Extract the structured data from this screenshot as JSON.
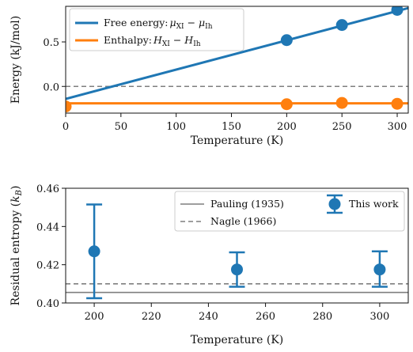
{
  "chart_data": [
    {
      "type": "line",
      "xlabel": "Temperature (K)",
      "ylabel": "Energy (kJ/mol)",
      "xlim": [
        0,
        310
      ],
      "ylim": [
        -0.3,
        0.9
      ],
      "xticks": [
        0,
        50,
        100,
        150,
        200,
        250,
        300
      ],
      "yticks": [
        0.0,
        0.5
      ],
      "ytick_labels": [
        "0.0",
        "0.5"
      ],
      "legend_placement": "top-left",
      "reference_line": {
        "y": 0.0,
        "style": "dashed",
        "color": "#7f7f7f"
      },
      "series": [
        {
          "name": "Free energy: μXI − μIh",
          "legend_prefix": "Free energy: ",
          "legend_math": "μXI − μIh",
          "color": "#1f77b4",
          "line": {
            "x": [
              0,
              310
            ],
            "y": [
              -0.14,
              0.88
            ]
          },
          "points": [
            {
              "x": 200,
              "y": 0.52
            },
            {
              "x": 250,
              "y": 0.69
            },
            {
              "x": 300,
              "y": 0.86
            }
          ]
        },
        {
          "name": "Enthalpy: HXI − HIh",
          "legend_prefix": "Enthalpy: ",
          "legend_math": "HXI − HIh",
          "color": "#ff7f0e",
          "line": {
            "x": [
              0,
              310
            ],
            "y": [
              -0.19,
              -0.19
            ]
          },
          "points": [
            {
              "x": 0,
              "y": -0.225
            },
            {
              "x": 200,
              "y": -0.2
            },
            {
              "x": 250,
              "y": -0.185
            },
            {
              "x": 300,
              "y": -0.195
            }
          ]
        }
      ]
    },
    {
      "type": "scatter",
      "xlabel": "Temperature (K)",
      "ylabel": "Residual entropy (kB)",
      "xlim": [
        190,
        310
      ],
      "ylim": [
        0.4,
        0.46
      ],
      "xticks": [
        200,
        220,
        240,
        260,
        280,
        300
      ],
      "yticks": [
        0.4,
        0.42,
        0.44,
        0.46
      ],
      "ytick_labels": [
        "0.40",
        "0.42",
        "0.44",
        "0.46"
      ],
      "legend_placement": "top-right",
      "reference_lines": [
        {
          "name": "Pauling (1935)",
          "y": 0.4055,
          "style": "solid",
          "color": "#7f7f7f"
        },
        {
          "name": "Nagle (1966)",
          "y": 0.41,
          "style": "dashed",
          "color": "#7f7f7f"
        }
      ],
      "series": [
        {
          "name": "This work",
          "color": "#1f77b4",
          "points": [
            {
              "x": 200,
              "y": 0.427,
              "yerr_low": 0.4025,
              "yerr_high": 0.4515
            },
            {
              "x": 250,
              "y": 0.4175,
              "yerr_low": 0.4085,
              "yerr_high": 0.4265
            },
            {
              "x": 300,
              "y": 0.4175,
              "yerr_low": 0.4085,
              "yerr_high": 0.427
            }
          ]
        }
      ]
    }
  ]
}
